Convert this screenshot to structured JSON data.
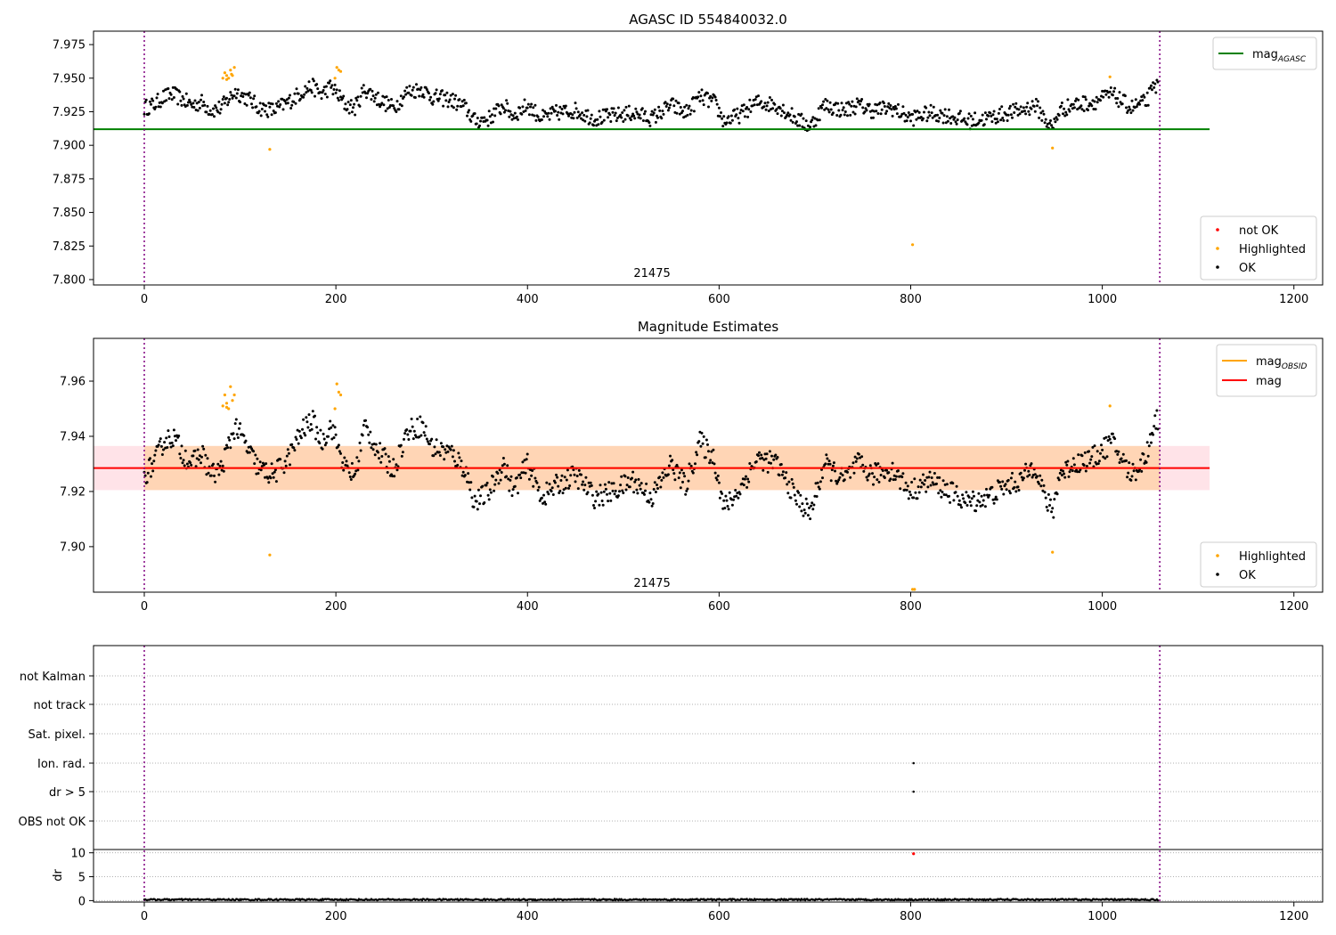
{
  "colors": {
    "ok": "#000000",
    "highlighted": "#ffa500",
    "not_ok": "#ff0000",
    "mag_agasc": "#008000",
    "mag_obsid": "#ffa500",
    "mag": "#ff0000",
    "band_orange": "#ffa500",
    "band_pink": "#ffc0cb",
    "obs_boundary": "#800080",
    "grid": "#b0b0b0"
  },
  "chart_data": [
    {
      "id": "agasc",
      "type": "scatter",
      "title": "AGASC ID 554840032.0",
      "xlim": [
        -53,
        1230
      ],
      "ylim": [
        7.796,
        7.985
      ],
      "xticks": [
        0,
        200,
        400,
        600,
        800,
        1000,
        1200
      ],
      "yticks": [
        7.8,
        7.825,
        7.85,
        7.875,
        7.9,
        7.925,
        7.95,
        7.975
      ],
      "ytick_decimals": 3,
      "hlines": [
        {
          "name": "mag_AGASC",
          "y": 7.912,
          "x": [
            -53,
            1112
          ],
          "color_key": "mag_agasc"
        }
      ],
      "obs_boundaries": [
        0,
        1060
      ],
      "obs_label": {
        "text": "21475",
        "x": 530,
        "y": 7.802
      },
      "legend_lines": [
        {
          "label": "mag",
          "sub": "AGASC",
          "color_key": "mag_agasc"
        }
      ],
      "legend_points": [
        {
          "label": "not OK",
          "color_key": "not_ok"
        },
        {
          "label": "Highlighted",
          "color_key": "highlighted"
        },
        {
          "label": "OK",
          "color_key": "ok"
        }
      ],
      "series": [
        {
          "name": "OK",
          "points_from_profile": true,
          "profile": [
            [
              0,
              7.928
            ],
            [
              10,
              7.93
            ],
            [
              20,
              7.936
            ],
            [
              30,
              7.938
            ],
            [
              40,
              7.934
            ],
            [
              50,
              7.93
            ],
            [
              60,
              7.932
            ],
            [
              70,
              7.926
            ],
            [
              80,
              7.928
            ],
            [
              95,
              7.94
            ],
            [
              110,
              7.934
            ],
            [
              120,
              7.928
            ],
            [
              135,
              7.926
            ],
            [
              150,
              7.932
            ],
            [
              165,
              7.94
            ],
            [
              175,
              7.944
            ],
            [
              185,
              7.938
            ],
            [
              195,
              7.944
            ],
            [
              210,
              7.93
            ],
            [
              220,
              7.928
            ],
            [
              230,
              7.942
            ],
            [
              245,
              7.934
            ],
            [
              260,
              7.928
            ],
            [
              275,
              7.94
            ],
            [
              290,
              7.942
            ],
            [
              300,
              7.936
            ],
            [
              320,
              7.934
            ],
            [
              335,
              7.928
            ],
            [
              345,
              7.918
            ],
            [
              360,
              7.92
            ],
            [
              375,
              7.93
            ],
            [
              385,
              7.922
            ],
            [
              400,
              7.93
            ],
            [
              415,
              7.92
            ],
            [
              430,
              7.924
            ],
            [
              450,
              7.926
            ],
            [
              470,
              7.92
            ],
            [
              490,
              7.922
            ],
            [
              510,
              7.924
            ],
            [
              530,
              7.92
            ],
            [
              550,
              7.93
            ],
            [
              565,
              7.924
            ],
            [
              580,
              7.936
            ],
            [
              595,
              7.932
            ],
            [
              605,
              7.918
            ],
            [
              620,
              7.922
            ],
            [
              640,
              7.932
            ],
            [
              660,
              7.93
            ],
            [
              680,
              7.92
            ],
            [
              695,
              7.914
            ],
            [
              710,
              7.93
            ],
            [
              730,
              7.926
            ],
            [
              745,
              7.93
            ],
            [
              760,
              7.926
            ],
            [
              780,
              7.928
            ],
            [
              800,
              7.92
            ],
            [
              820,
              7.924
            ],
            [
              840,
              7.922
            ],
            [
              860,
              7.918
            ],
            [
              880,
              7.92
            ],
            [
              900,
              7.924
            ],
            [
              915,
              7.926
            ],
            [
              930,
              7.93
            ],
            [
              940,
              7.92
            ],
            [
              948,
              7.912
            ],
            [
              955,
              7.926
            ],
            [
              970,
              7.93
            ],
            [
              990,
              7.932
            ],
            [
              1010,
              7.938
            ],
            [
              1030,
              7.928
            ],
            [
              1045,
              7.932
            ],
            [
              1055,
              7.944
            ]
          ],
          "color_key": "ok"
        },
        {
          "name": "Highlighted",
          "points": [
            [
              82,
              7.95
            ],
            [
              84,
              7.954
            ],
            [
              86,
              7.952
            ],
            [
              88,
              7.95
            ],
            [
              90,
              7.956
            ],
            [
              92,
              7.952
            ],
            [
              86,
              7.949
            ],
            [
              94,
              7.958
            ],
            [
              91,
              7.953
            ],
            [
              201,
              7.958
            ],
            [
              203,
              7.956
            ],
            [
              205,
              7.955
            ],
            [
              199,
              7.95
            ],
            [
              131,
              7.897
            ],
            [
              948,
              7.898
            ],
            [
              1008,
              7.951
            ],
            [
              802,
              7.826
            ]
          ],
          "color_key": "highlighted"
        }
      ]
    },
    {
      "id": "estimates",
      "type": "scatter",
      "title": "Magnitude Estimates",
      "xlim": [
        -53,
        1230
      ],
      "ylim": [
        7.8835,
        7.9755
      ],
      "xticks": [
        0,
        200,
        400,
        600,
        800,
        1000,
        1200
      ],
      "yticks": [
        7.9,
        7.92,
        7.94,
        7.96
      ],
      "ytick_decimals": 2,
      "bands": [
        {
          "x": [
            -53,
            1112
          ],
          "y": [
            7.9205,
            7.9365
          ],
          "color_key": "band_pink",
          "opacity": 0.45
        },
        {
          "x": [
            0,
            1060
          ],
          "y": [
            7.9205,
            7.9365
          ],
          "color_key": "band_orange",
          "opacity": 0.22
        }
      ],
      "hlines": [
        {
          "name": "mag_OBSID",
          "y": 7.9285,
          "x": [
            0,
            1060
          ],
          "color_key": "mag_obsid"
        },
        {
          "name": "mag",
          "y": 7.9285,
          "x": [
            -53,
            1112
          ],
          "color_key": "mag"
        }
      ],
      "obs_boundaries": [
        0,
        1060
      ],
      "obs_label": {
        "text": "21475",
        "x": 530,
        "y": 7.8855
      },
      "legend_lines": [
        {
          "label": "mag",
          "sub": "OBSID",
          "color_key": "mag_obsid"
        },
        {
          "label": "mag",
          "sub": "",
          "color_key": "mag"
        }
      ],
      "legend_points": [
        {
          "label": "Highlighted",
          "color_key": "highlighted"
        },
        {
          "label": "OK",
          "color_key": "ok"
        }
      ],
      "series": [
        {
          "name": "OK",
          "points_from_profile": true,
          "profile": [
            [
              0,
              7.926
            ],
            [
              10,
              7.93
            ],
            [
              20,
              7.938
            ],
            [
              30,
              7.94
            ],
            [
              40,
              7.934
            ],
            [
              50,
              7.93
            ],
            [
              60,
              7.934
            ],
            [
              70,
              7.926
            ],
            [
              80,
              7.928
            ],
            [
              95,
              7.944
            ],
            [
              110,
              7.934
            ],
            [
              120,
              7.928
            ],
            [
              135,
              7.926
            ],
            [
              150,
              7.932
            ],
            [
              165,
              7.942
            ],
            [
              175,
              7.946
            ],
            [
              185,
              7.938
            ],
            [
              195,
              7.944
            ],
            [
              210,
              7.928
            ],
            [
              220,
              7.926
            ],
            [
              230,
              7.944
            ],
            [
              245,
              7.934
            ],
            [
              260,
              7.928
            ],
            [
              275,
              7.942
            ],
            [
              290,
              7.944
            ],
            [
              300,
              7.936
            ],
            [
              320,
              7.934
            ],
            [
              335,
              7.928
            ],
            [
              345,
              7.916
            ],
            [
              360,
              7.92
            ],
            [
              375,
              7.93
            ],
            [
              385,
              7.92
            ],
            [
              400,
              7.93
            ],
            [
              415,
              7.918
            ],
            [
              430,
              7.922
            ],
            [
              450,
              7.926
            ],
            [
              470,
              7.918
            ],
            [
              490,
              7.92
            ],
            [
              510,
              7.924
            ],
            [
              530,
              7.918
            ],
            [
              550,
              7.93
            ],
            [
              565,
              7.922
            ],
            [
              580,
              7.938
            ],
            [
              595,
              7.932
            ],
            [
              605,
              7.914
            ],
            [
              620,
              7.92
            ],
            [
              640,
              7.932
            ],
            [
              660,
              7.93
            ],
            [
              680,
              7.918
            ],
            [
              695,
              7.912
            ],
            [
              710,
              7.93
            ],
            [
              730,
              7.924
            ],
            [
              745,
              7.93
            ],
            [
              760,
              7.926
            ],
            [
              780,
              7.928
            ],
            [
              800,
              7.92
            ],
            [
              820,
              7.924
            ],
            [
              840,
              7.92
            ],
            [
              860,
              7.916
            ],
            [
              880,
              7.918
            ],
            [
              900,
              7.922
            ],
            [
              915,
              7.924
            ],
            [
              930,
              7.93
            ],
            [
              940,
              7.918
            ],
            [
              948,
              7.912
            ],
            [
              955,
              7.926
            ],
            [
              970,
              7.93
            ],
            [
              990,
              7.932
            ],
            [
              1010,
              7.938
            ],
            [
              1030,
              7.926
            ],
            [
              1045,
              7.932
            ],
            [
              1055,
              7.946
            ]
          ],
          "color_key": "ok"
        },
        {
          "name": "Highlighted",
          "points": [
            [
              82,
              7.951
            ],
            [
              84,
              7.955
            ],
            [
              86,
              7.952
            ],
            [
              88,
              7.95
            ],
            [
              90,
              7.958
            ],
            [
              92,
              7.953
            ],
            [
              86,
              7.9505
            ],
            [
              94,
              7.955
            ],
            [
              201,
              7.959
            ],
            [
              203,
              7.956
            ],
            [
              205,
              7.955
            ],
            [
              199,
              7.95
            ],
            [
              131,
              7.897
            ],
            [
              948,
              7.898
            ],
            [
              1008,
              7.951
            ],
            [
              802,
              7.8845
            ],
            [
              804,
              7.8845
            ]
          ],
          "color_key": "highlighted"
        }
      ]
    },
    {
      "id": "flags",
      "type": "scatter",
      "title": "",
      "xlim": [
        -53,
        1230
      ],
      "xticks": [
        0,
        200,
        400,
        600,
        800,
        1000,
        1200
      ],
      "flag_labels": [
        "not Kalman",
        "not track",
        "Sat. pixel.",
        "Ion. rad.",
        "dr > 5",
        "OBS not OK"
      ],
      "flag_points": [
        {
          "flag": "Ion. rad.",
          "x": 803
        },
        {
          "flag": "dr > 5",
          "x": 803
        }
      ],
      "dr": {
        "ylabel": "dr",
        "ylim": [
          -0.3,
          10.5
        ],
        "yticks": [
          0,
          5,
          10
        ],
        "baseline": 0.2,
        "outlier": {
          "x": 803,
          "y": 9.8
        }
      },
      "obs_boundaries": [
        0,
        1060
      ]
    }
  ]
}
